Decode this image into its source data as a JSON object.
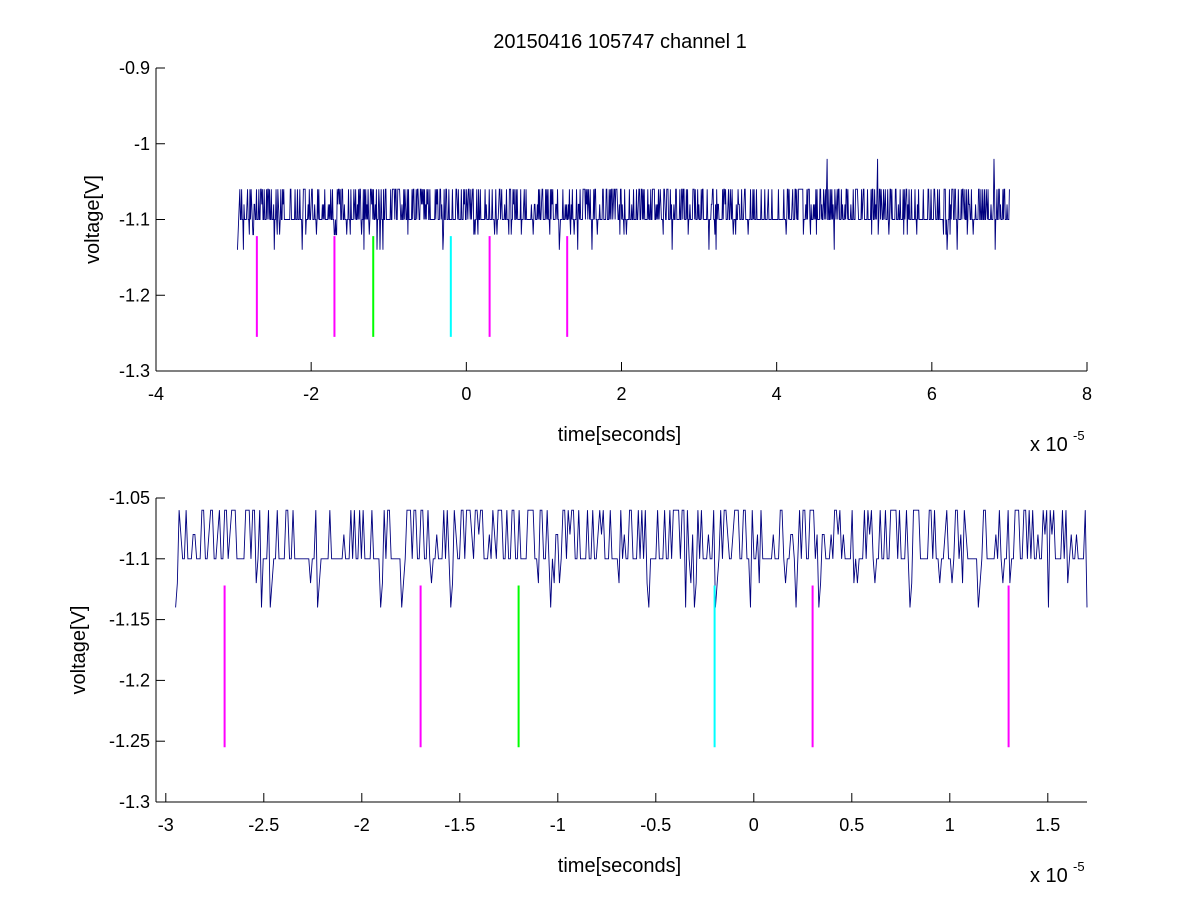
{
  "figure_title": "20150416 105747 channel 1",
  "chart_data": [
    {
      "type": "line",
      "title": "20150416 105747 channel 1",
      "xlabel": "time[seconds]",
      "ylabel": "voltage[V]",
      "x_multiplier": {
        "base": "x 10",
        "exponent": "-5"
      },
      "xlim": [
        -4,
        8
      ],
      "ylim": [
        -1.3,
        -0.9
      ],
      "xticks": [
        -4,
        -2,
        0,
        2,
        4,
        6,
        8
      ],
      "xtick_labels": [
        "-4",
        "-2",
        "0",
        "2",
        "4",
        "6",
        "8"
      ],
      "yticks": [
        -1.3,
        -1.2,
        -1.1,
        -1.0,
        -0.9
      ],
      "ytick_labels": [
        "-1.3",
        "-1.2",
        "-1.1",
        "-1",
        "-0.9"
      ],
      "grid": false,
      "series": [
        {
          "color": "#00007f",
          "style": "quantized-noise",
          "x_range": [
            -2.95,
            7.0
          ],
          "levels": [
            -1.14,
            -1.12,
            -1.1,
            -1.08,
            -1.06
          ],
          "baseline": -1.1,
          "spikes": [
            [
              4.65,
              -1.02
            ],
            [
              5.3,
              -1.02
            ],
            [
              6.8,
              -1.02
            ]
          ],
          "dips": [
            [
              -2.95,
              -1.14
            ],
            [
              -2.75,
              -1.12
            ],
            [
              -1.7,
              -1.12
            ],
            [
              -0.3,
              -1.14
            ],
            [
              1.2,
              -1.14
            ],
            [
              5.3,
              -1.14
            ],
            [
              6.2,
              -1.14
            ]
          ]
        }
      ],
      "markers": [
        {
          "x": -2.7,
          "y0": -1.255,
          "y1": -1.122,
          "color": "#ff00ff"
        },
        {
          "x": -1.7,
          "y0": -1.255,
          "y1": -1.122,
          "color": "#ff00ff"
        },
        {
          "x": -1.2,
          "y0": -1.255,
          "y1": -1.122,
          "color": "#00ff00"
        },
        {
          "x": -0.2,
          "y0": -1.255,
          "y1": -1.122,
          "color": "#00ffff"
        },
        {
          "x": 0.3,
          "y0": -1.255,
          "y1": -1.122,
          "color": "#ff00ff"
        },
        {
          "x": 1.3,
          "y0": -1.255,
          "y1": -1.122,
          "color": "#ff00ff"
        }
      ]
    },
    {
      "type": "line",
      "title": "",
      "xlabel": "time[seconds]",
      "ylabel": "voltage[V]",
      "x_multiplier": {
        "base": "x 10",
        "exponent": "-5"
      },
      "xlim": [
        -3.05,
        1.7
      ],
      "ylim": [
        -1.3,
        -1.05
      ],
      "xticks": [
        -3,
        -2.5,
        -2,
        -1.5,
        -1,
        -0.5,
        0,
        0.5,
        1,
        1.5
      ],
      "xtick_labels": [
        "-3",
        "-2.5",
        "-2",
        "-1.5",
        "-1",
        "-0.5",
        "0",
        "0.5",
        "1",
        "1.5"
      ],
      "yticks": [
        -1.3,
        -1.25,
        -1.2,
        -1.15,
        -1.1,
        -1.05
      ],
      "ytick_labels": [
        "-1.3",
        "-1.25",
        "-1.2",
        "-1.15",
        "-1.1",
        "-1.05"
      ],
      "grid": false,
      "series": [
        {
          "color": "#00007f",
          "style": "quantized-noise",
          "x_range": [
            -2.95,
            1.7
          ],
          "levels": [
            -1.14,
            -1.12,
            -1.1,
            -1.08,
            -1.06
          ],
          "baseline": -1.1,
          "spikes": [],
          "dips": [
            [
              -2.95,
              -1.14
            ],
            [
              -2.47,
              -1.14
            ],
            [
              -2.23,
              -1.14
            ],
            [
              -1.9,
              -1.14
            ],
            [
              -1.8,
              -1.14
            ],
            [
              -1.55,
              -1.14
            ],
            [
              -0.3,
              -1.14
            ],
            [
              -0.2,
              -1.14
            ],
            [
              0.33,
              -1.14
            ],
            [
              0.8,
              -1.14
            ],
            [
              1.15,
              -1.14
            ],
            [
              1.7,
              -1.14
            ]
          ]
        }
      ],
      "markers": [
        {
          "x": -2.7,
          "y0": -1.255,
          "y1": -1.122,
          "color": "#ff00ff"
        },
        {
          "x": -1.7,
          "y0": -1.255,
          "y1": -1.122,
          "color": "#ff00ff"
        },
        {
          "x": -1.2,
          "y0": -1.255,
          "y1": -1.122,
          "color": "#00ff00"
        },
        {
          "x": -0.2,
          "y0": -1.255,
          "y1": -1.122,
          "color": "#00ffff"
        },
        {
          "x": 0.3,
          "y0": -1.255,
          "y1": -1.122,
          "color": "#ff00ff"
        },
        {
          "x": 1.3,
          "y0": -1.255,
          "y1": -1.122,
          "color": "#ff00ff"
        }
      ]
    }
  ]
}
